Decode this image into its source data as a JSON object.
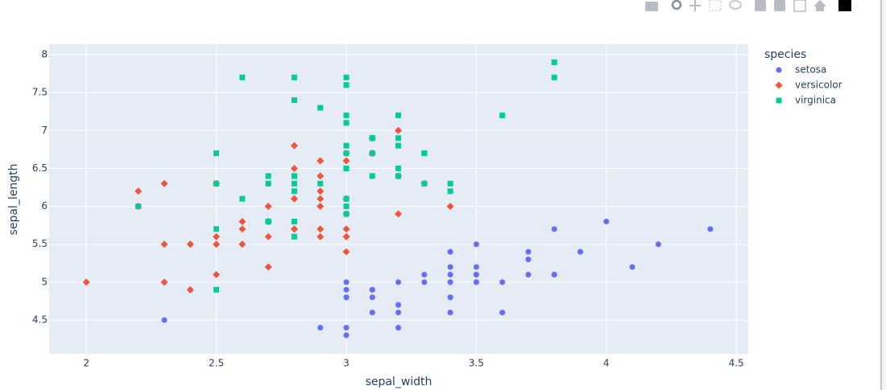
{
  "chart_data": {
    "type": "scatter",
    "x_label": "sepal_width",
    "y_label": "sepal_length",
    "legend_title": "species",
    "xlim": [
      1.857,
      4.546
    ],
    "ylim": [
      4.055,
      8.138
    ],
    "xticks": [
      2,
      2.5,
      3,
      3.5,
      4,
      4.5
    ],
    "yticks": [
      4.5,
      5,
      5.5,
      6,
      6.5,
      7,
      7.5,
      8
    ],
    "grid": true,
    "legend": "right",
    "series": [
      {
        "name": "setosa",
        "color": "#636efa",
        "marker": "circle",
        "x": [
          3.5,
          3,
          3.2,
          3.1,
          3.6,
          3.9,
          3.4,
          3.4,
          2.9,
          3.1,
          3.7,
          3.4,
          3,
          3,
          4,
          4.4,
          3.9,
          3.5,
          3.8,
          3.8,
          3.4,
          3.7,
          3.6,
          3.3,
          3.4,
          3,
          3.4,
          3.5,
          3.4,
          3.2,
          3.1,
          3.4,
          4.1,
          4.2,
          3.1,
          3.2,
          3.5,
          3.1,
          3,
          3.4,
          3.5,
          2.3,
          3.2,
          3.5,
          3.8,
          3,
          3.8,
          3.2,
          3.7,
          3.3
        ],
        "values": [
          5.1,
          4.9,
          4.7,
          4.6,
          5,
          5.4,
          4.6,
          5,
          4.4,
          4.9,
          5.4,
          4.8,
          4.8,
          4.3,
          5.8,
          5.7,
          5.4,
          5.1,
          5.7,
          5.1,
          5.4,
          5.1,
          4.6,
          5.1,
          4.8,
          5,
          5,
          5.2,
          5.2,
          4.7,
          4.8,
          5.4,
          5.2,
          5.5,
          4.9,
          5,
          5.5,
          4.9,
          4.4,
          5.1,
          5,
          4.5,
          4.4,
          5,
          5.1,
          4.8,
          5.1,
          4.6,
          5.3,
          5
        ]
      },
      {
        "name": "versicolor",
        "color": "#EF553B",
        "marker": "diamond",
        "x": [
          3.2,
          3.2,
          3.1,
          2.3,
          2.8,
          2.8,
          3.3,
          2.4,
          2.9,
          2.7,
          2,
          3,
          2.2,
          2.9,
          2.9,
          3.1,
          3,
          2.7,
          2.2,
          2.5,
          3.2,
          2.8,
          2.5,
          2.8,
          2.9,
          3,
          2.8,
          3,
          2.9,
          2.6,
          2.4,
          2.4,
          2.7,
          2.7,
          3,
          3.4,
          3.1,
          2.3,
          3,
          2.5,
          2.6,
          3,
          2.6,
          2.3,
          2.7,
          3,
          2.9,
          2.9,
          2.5,
          2.8
        ],
        "values": [
          7,
          6.4,
          6.9,
          5.5,
          6.5,
          5.7,
          6.3,
          4.9,
          6.6,
          5.2,
          5,
          5.9,
          6,
          6.1,
          5.6,
          6.7,
          5.6,
          5.8,
          6.2,
          5.6,
          5.9,
          6.1,
          6.3,
          6.1,
          6.4,
          6.6,
          6.8,
          6.7,
          6,
          5.7,
          5.5,
          5.5,
          5.8,
          6,
          5.4,
          6,
          6.7,
          6.3,
          5.6,
          5.5,
          5.5,
          6.1,
          5.8,
          5,
          5.6,
          5.7,
          5.7,
          6.2,
          5.1,
          5.7
        ]
      },
      {
        "name": "virginica",
        "color": "#00cc96",
        "marker": "square",
        "x": [
          3.3,
          2.7,
          3,
          2.9,
          3,
          3,
          2.5,
          2.9,
          2.5,
          3.6,
          3.2,
          2.7,
          3,
          2.5,
          2.8,
          3.2,
          3,
          3.8,
          2.6,
          2.2,
          3.2,
          2.8,
          2.8,
          2.7,
          3.3,
          3.2,
          2.8,
          3,
          2.8,
          3,
          2.8,
          3.8,
          2.8,
          2.8,
          2.6,
          3,
          3.4,
          3.1,
          3,
          3.1,
          3.1,
          3.1,
          2.7,
          3.2,
          3.3,
          3,
          2.5,
          3,
          3.4,
          3
        ],
        "values": [
          6.3,
          5.8,
          7.1,
          6.3,
          6.5,
          7.6,
          4.9,
          7.3,
          6.7,
          7.2,
          6.5,
          6.4,
          6.8,
          5.7,
          5.8,
          6.4,
          6.5,
          7.7,
          7.7,
          6,
          6.9,
          5.6,
          7.7,
          6.3,
          6.7,
          7.2,
          6.2,
          6.1,
          6.4,
          7.2,
          7.4,
          7.9,
          6.4,
          6.3,
          6.1,
          7.7,
          6.3,
          6.4,
          6,
          6.9,
          6.7,
          6.9,
          5.8,
          6.8,
          6.7,
          6.7,
          6.3,
          6.5,
          6.2,
          5.9
        ]
      }
    ]
  }
}
